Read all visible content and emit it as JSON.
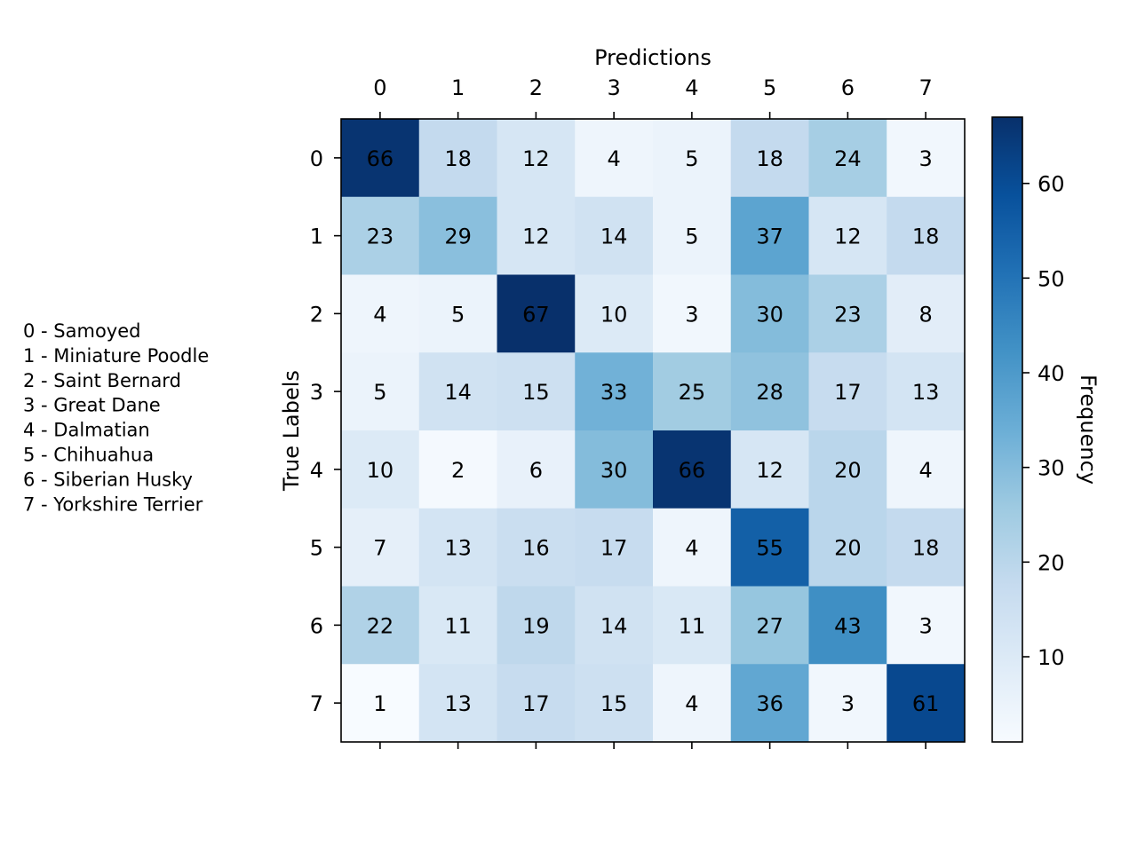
{
  "chart_data": {
    "type": "heatmap",
    "title": "",
    "xlabel": "Predictions",
    "ylabel": "True Labels",
    "x_categories": [
      "0",
      "1",
      "2",
      "3",
      "4",
      "5",
      "6",
      "7"
    ],
    "y_categories": [
      "0",
      "1",
      "2",
      "3",
      "4",
      "5",
      "6",
      "7"
    ],
    "values": [
      [
        66,
        18,
        12,
        4,
        5,
        18,
        24,
        3
      ],
      [
        23,
        29,
        12,
        14,
        5,
        37,
        12,
        18
      ],
      [
        4,
        5,
        67,
        10,
        3,
        30,
        23,
        8
      ],
      [
        5,
        14,
        15,
        33,
        25,
        28,
        17,
        13
      ],
      [
        10,
        2,
        6,
        30,
        66,
        12,
        20,
        4
      ],
      [
        7,
        13,
        16,
        17,
        4,
        55,
        20,
        18
      ],
      [
        22,
        11,
        19,
        14,
        11,
        27,
        43,
        3
      ],
      [
        1,
        13,
        17,
        15,
        4,
        36,
        3,
        61
      ]
    ],
    "colorbar": {
      "label": "Frequency",
      "range": [
        1,
        67
      ],
      "ticks": [
        "10",
        "20",
        "30",
        "40",
        "50",
        "60"
      ],
      "colormap": "Blues"
    },
    "grid": false,
    "legend_placement": "left",
    "legend": [
      "0 - Samoyed",
      "1 - Miniature Poodle",
      "2 - Saint Bernard",
      "3 - Great Dane",
      "4 - Dalmatian",
      "5 - Chihuahua",
      "6 - Siberian Husky",
      "7 - Yorkshire Terrier"
    ]
  }
}
